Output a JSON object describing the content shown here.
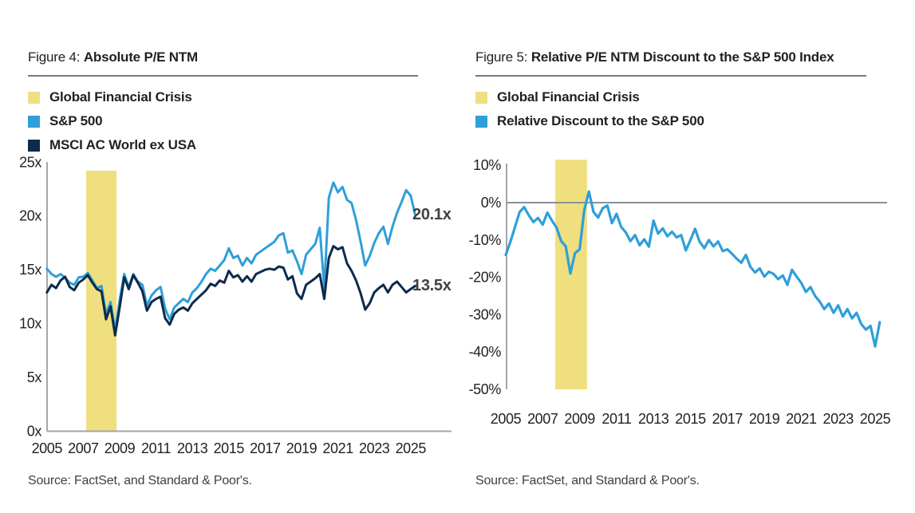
{
  "chart_data": [
    {
      "type": "line",
      "figure_prefix": "Figure 4: ",
      "title": "Absolute P/E NTM",
      "source": "Source: FactSet, and Standard & Poor's.",
      "legend": [
        {
          "label": "Global Financial Crisis",
          "color": "#EFDF7F"
        },
        {
          "label": "S&P 500",
          "color": "#2E9FD9"
        },
        {
          "label": "MSCI AC World ex USA",
          "color": "#0D2B4B"
        }
      ],
      "colors": {
        "axis": "#A4A6A9",
        "band": "#EFDF7F"
      },
      "xlim": [
        2005,
        2025.3
      ],
      "ylim": [
        0,
        25
      ],
      "grid": false,
      "band": {
        "name": "Global Financial Crisis",
        "x_from": 2007.16,
        "x_to": 2008.83,
        "y_from": 0,
        "y_to": 24.2
      },
      "x_ticks": [
        {
          "v": 2005,
          "label": "2005"
        },
        {
          "v": 2007,
          "label": "2007"
        },
        {
          "v": 2009,
          "label": "2009"
        },
        {
          "v": 2011,
          "label": "2011"
        },
        {
          "v": 2013,
          "label": "2013"
        },
        {
          "v": 2015,
          "label": "2015"
        },
        {
          "v": 2017,
          "label": "2017"
        },
        {
          "v": 2019,
          "label": "2019"
        },
        {
          "v": 2021,
          "label": "2021"
        },
        {
          "v": 2023,
          "label": "2023"
        },
        {
          "v": 2025,
          "label": "2025"
        }
      ],
      "y_ticks": [
        {
          "v": 0,
          "label": "0x"
        },
        {
          "v": 5,
          "label": "5x"
        },
        {
          "v": 10,
          "label": "10x"
        },
        {
          "v": 15,
          "label": "15x"
        },
        {
          "v": 20,
          "label": "20x"
        },
        {
          "v": 25,
          "label": "25x"
        }
      ],
      "series": [
        {
          "id": "sp500-line",
          "name": "S&P 500",
          "color": "#2E9FD9",
          "width": 3,
          "x_start": 2005,
          "x_step": 0.25,
          "values": [
            15.1,
            14.6,
            14.35,
            14.6,
            14.25,
            13.8,
            13.6,
            14.3,
            14.35,
            14.7,
            14.0,
            13.3,
            13.5,
            10.9,
            12.0,
            9.4,
            12.2,
            14.6,
            13.4,
            14.6,
            13.9,
            13.6,
            11.7,
            12.6,
            13.1,
            13.4,
            11.4,
            10.4,
            11.5,
            11.9,
            12.3,
            12.0,
            12.9,
            13.3,
            13.9,
            14.6,
            15.1,
            14.9,
            15.4,
            15.9,
            17.0,
            16.1,
            16.3,
            15.4,
            16.1,
            15.6,
            16.4,
            16.7,
            17.0,
            17.3,
            17.6,
            18.2,
            18.4,
            16.6,
            16.8,
            15.8,
            14.6,
            16.4,
            16.9,
            17.4,
            18.9,
            13.3,
            21.7,
            23.1,
            22.2,
            22.7,
            21.5,
            21.2,
            19.6,
            17.6,
            15.4,
            16.3,
            17.5,
            18.4,
            19.0,
            17.4,
            19.0,
            20.3,
            21.3,
            22.4,
            21.9,
            20.1
          ]
        },
        {
          "id": "msci-line",
          "name": "MSCI AC World ex USA",
          "color": "#0D2B4B",
          "width": 3,
          "x_start": 2005,
          "x_step": 0.25,
          "values": [
            12.9,
            13.6,
            13.3,
            14.0,
            14.35,
            13.4,
            13.1,
            13.8,
            14.1,
            14.5,
            13.8,
            13.2,
            13.0,
            10.4,
            11.6,
            8.9,
            11.5,
            14.3,
            13.2,
            14.5,
            13.8,
            13.0,
            11.2,
            12.0,
            12.3,
            12.5,
            10.5,
            9.9,
            10.9,
            11.3,
            11.5,
            11.2,
            11.9,
            12.3,
            12.7,
            13.1,
            13.7,
            13.5,
            14.0,
            13.8,
            14.9,
            14.3,
            14.5,
            13.9,
            14.4,
            13.9,
            14.6,
            14.8,
            15.0,
            15.1,
            15.0,
            15.3,
            15.2,
            14.1,
            14.4,
            12.8,
            12.3,
            13.6,
            13.9,
            14.2,
            14.6,
            12.3,
            16.1,
            17.2,
            16.9,
            17.1,
            15.6,
            14.9,
            14.0,
            12.8,
            11.3,
            11.9,
            12.9,
            13.3,
            13.6,
            12.9,
            13.6,
            13.9,
            13.4,
            12.9,
            13.2,
            13.5
          ]
        }
      ],
      "end_labels": [
        {
          "text": "20.1x",
          "value": 20.1,
          "series": "S&P 500"
        },
        {
          "text": "13.5x",
          "value": 13.5,
          "series": "MSCI AC World ex USA"
        }
      ]
    },
    {
      "type": "line",
      "figure_prefix": "Figure 5: ",
      "title": "Relative P/E NTM Discount to the S&P 500 Index",
      "source": "Source: FactSet, and Standard & Poor's.",
      "legend": [
        {
          "label": "Global Financial Crisis",
          "color": "#EFDF7F"
        },
        {
          "label": "Relative Discount to the S&P 500",
          "color": "#2E9FD9"
        }
      ],
      "colors": {
        "axis": "#A4A6A9",
        "zero_line": "#8E9093",
        "band": "#EFDF7F"
      },
      "xlim": [
        2005,
        2025.3
      ],
      "ylim": [
        -50,
        10
      ],
      "grid": false,
      "zero_line": true,
      "band": {
        "name": "Global Financial Crisis",
        "x_from": 2007.68,
        "x_to": 2009.4,
        "y_from": -50,
        "y_to": 11.5
      },
      "x_ticks": [
        {
          "v": 2005,
          "label": "2005"
        },
        {
          "v": 2007,
          "label": "2007"
        },
        {
          "v": 2009,
          "label": "2009"
        },
        {
          "v": 2011,
          "label": "2011"
        },
        {
          "v": 2013,
          "label": "2013"
        },
        {
          "v": 2015,
          "label": "2015"
        },
        {
          "v": 2017,
          "label": "2017"
        },
        {
          "v": 2019,
          "label": "2019"
        },
        {
          "v": 2021,
          "label": "2021"
        },
        {
          "v": 2023,
          "label": "2023"
        },
        {
          "v": 2025,
          "label": "2025"
        }
      ],
      "y_ticks": [
        {
          "v": 10,
          "label": "10%"
        },
        {
          "v": 0,
          "label": "0%"
        },
        {
          "v": -10,
          "label": "-10%"
        },
        {
          "v": -20,
          "label": "-20%"
        },
        {
          "v": -30,
          "label": "-30%"
        },
        {
          "v": -40,
          "label": "-40%"
        },
        {
          "v": -50,
          "label": "-50%"
        }
      ],
      "series": [
        {
          "id": "relative-discount-line",
          "name": "Relative Discount to the S&P 500",
          "color": "#2E9FD9",
          "width": 3.2,
          "x_start": 2005,
          "x_step": 0.25,
          "values": [
            -14.0,
            -10.5,
            -6.5,
            -2.5,
            -1.2,
            -3.4,
            -5.2,
            -4.1,
            -5.9,
            -2.7,
            -4.8,
            -6.7,
            -10.3,
            -11.7,
            -19.0,
            -13.5,
            -12.5,
            -2.0,
            3.0,
            -2.5,
            -4.0,
            -1.5,
            -0.8,
            -5.5,
            -3.0,
            -6.5,
            -8.0,
            -10.3,
            -8.7,
            -11.4,
            -9.8,
            -11.8,
            -4.8,
            -8.3,
            -6.9,
            -9.0,
            -7.8,
            -9.3,
            -8.7,
            -12.8,
            -10.0,
            -7.0,
            -10.5,
            -12.2,
            -10.0,
            -11.7,
            -10.4,
            -13.0,
            -12.5,
            -13.7,
            -15.0,
            -16.1,
            -14.0,
            -17.2,
            -18.7,
            -17.6,
            -19.8,
            -18.5,
            -19.1,
            -20.5,
            -19.5,
            -22.0,
            -18.0,
            -19.8,
            -21.5,
            -23.9,
            -22.6,
            -25.0,
            -26.5,
            -28.5,
            -27.0,
            -29.5,
            -27.5,
            -30.5,
            -28.5,
            -31.0,
            -29.5,
            -32.5,
            -34.0,
            -33.0,
            -38.5,
            -32.0
          ]
        }
      ],
      "end_labels": []
    }
  ]
}
